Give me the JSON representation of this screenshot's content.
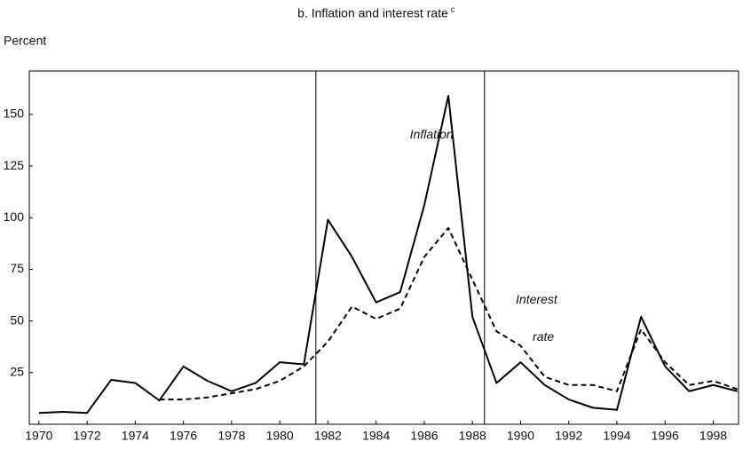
{
  "chart_data": {
    "type": "line",
    "title": "b. Inflation and interest rate",
    "title_note": "c",
    "ylabel": "Percent",
    "x": [
      1970,
      1971,
      1972,
      1973,
      1974,
      1975,
      1976,
      1977,
      1978,
      1979,
      1980,
      1981,
      1982,
      1983,
      1984,
      1985,
      1986,
      1987,
      1988,
      1989,
      1990,
      1991,
      1992,
      1993,
      1994,
      1995,
      1996,
      1997,
      1998,
      1999
    ],
    "series": [
      {
        "name": "Inflation",
        "color": "#000000",
        "dash": false,
        "values": [
          5.5,
          6,
          5.5,
          21.5,
          20,
          11.5,
          28,
          21,
          16,
          20,
          30,
          29,
          99,
          81,
          59,
          64,
          106,
          159,
          52,
          20,
          30,
          19,
          12,
          8,
          7,
          52,
          28,
          16,
          19,
          16
        ]
      },
      {
        "name": "Interest rate",
        "color": "#000000",
        "dash": true,
        "values": [
          null,
          null,
          null,
          null,
          null,
          12,
          12,
          13,
          15,
          17,
          21,
          28,
          40,
          57,
          51,
          56,
          81,
          95,
          70,
          45,
          38,
          23,
          19,
          19,
          16,
          46,
          30,
          19,
          21,
          17
        ]
      }
    ],
    "annotations": [
      "Inflation",
      "Interest",
      "rate"
    ],
    "vlines": [
      1981.5,
      1988.5
    ],
    "xlim": [
      1969.6,
      1999.05
    ],
    "xticks": [
      1970,
      1972,
      1974,
      1976,
      1978,
      1980,
      1982,
      1984,
      1986,
      1988,
      1990,
      1992,
      1994,
      1996,
      1998
    ],
    "ylim": [
      0,
      171
    ],
    "yticks": [
      25,
      50,
      75,
      100,
      125,
      150
    ],
    "grid": false
  }
}
